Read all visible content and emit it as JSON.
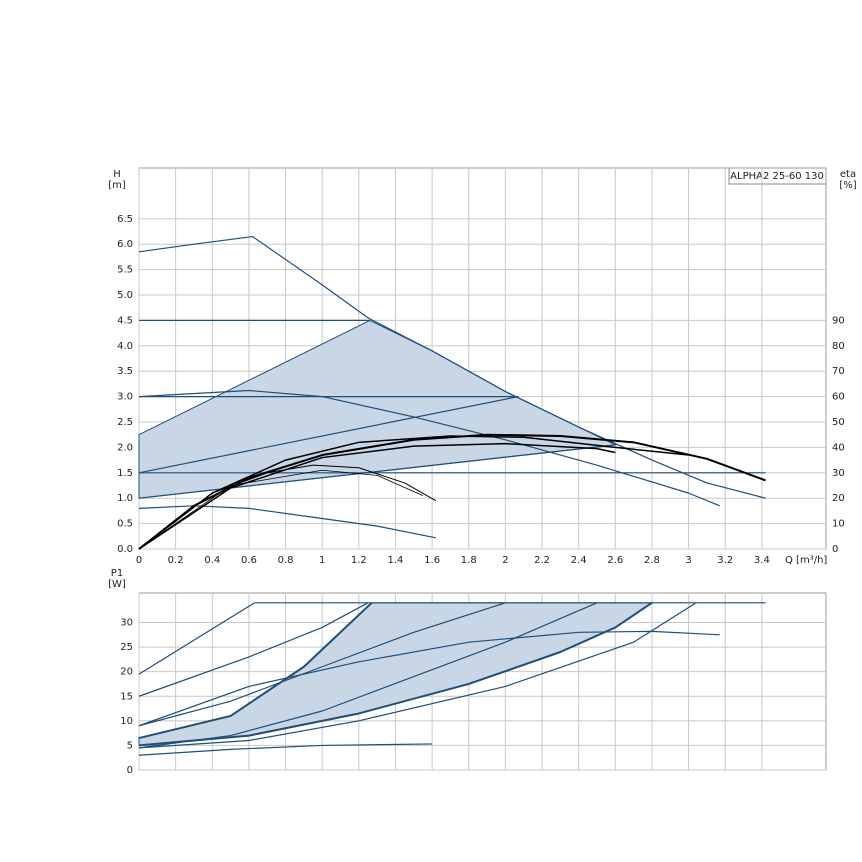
{
  "chart_data": [
    {
      "type": "line",
      "title": "ALPHA2 25-60 130",
      "ylabel": "H",
      "ylabel_unit": "[m]",
      "y2label": "eta",
      "y2label_unit": "[%]",
      "xlabel": "Q [m³/h]",
      "xlim": [
        0,
        3.75
      ],
      "ylim": [
        0,
        7.5
      ],
      "y2lim": [
        0,
        150
      ],
      "grid": true,
      "xticks": [
        0,
        0.2,
        0.4,
        0.6,
        0.8,
        1,
        1.2,
        1.4,
        1.6,
        1.8,
        2,
        2.2,
        2.4,
        2.6,
        2.8,
        3,
        3.2,
        3.4
      ],
      "yticks": [
        {
          "value": 0,
          "label": "0.0"
        },
        0.5,
        {
          "value": 1,
          "label": "1.0"
        },
        1.5,
        {
          "value": 2,
          "label": "2.0"
        },
        2.5,
        {
          "value": 3,
          "label": "3.0"
        },
        3.5,
        {
          "value": 4,
          "label": "4.0"
        },
        4.5,
        {
          "value": 5,
          "label": "5.0"
        },
        5.5,
        {
          "value": 6,
          "label": "6.0"
        },
        6.5
      ],
      "y2ticks": [
        0,
        10,
        20,
        30,
        40,
        50,
        60,
        70,
        80,
        90
      ],
      "series": [
        {
          "fill": "#c9d6e6",
          "color": "#1f4e79",
          "x": [
            0,
            1.26,
            1.6,
            2.0,
            2.4,
            2.6,
            0
          ],
          "values": [
            2.25,
            4.5,
            3.9,
            3.1,
            2.4,
            2.05,
            1.0
          ]
        },
        {
          "color": "#1f4e79",
          "x": [
            0,
            0.3,
            0.62,
            0.8,
            1.0,
            1.25,
            1.6,
            2.0,
            2.4,
            2.8,
            3.1,
            3.42
          ],
          "values": [
            5.85,
            6.0,
            6.15,
            5.7,
            5.2,
            4.55,
            3.9,
            3.1,
            2.4,
            1.75,
            1.3,
            1.0
          ]
        },
        {
          "color": "#1f4e79",
          "x": [
            0,
            1.26
          ],
          "values": [
            4.5,
            4.5
          ]
        },
        {
          "color": "#1f4e79",
          "x": [
            0,
            2.07
          ],
          "values": [
            3.0,
            3.0
          ]
        },
        {
          "color": "#1f4e79",
          "x": [
            0,
            3.42
          ],
          "values": [
            1.5,
            1.5
          ]
        },
        {
          "color": "#1f4e79",
          "x": [
            0,
            2.07
          ],
          "values": [
            1.5,
            3.0
          ]
        },
        {
          "color": "#1f4e79",
          "x": [
            0,
            2.6
          ],
          "values": [
            1.0,
            2.05
          ]
        },
        {
          "color": "#1f4e79",
          "x": [
            0,
            0.6,
            1.0,
            1.5,
            2.0,
            2.5,
            3.0,
            3.17
          ],
          "values": [
            3.0,
            3.12,
            3.0,
            2.6,
            2.15,
            1.65,
            1.1,
            0.85
          ]
        },
        {
          "color": "#1f4e79",
          "x": [
            0,
            0.3,
            0.6,
            1.0,
            1.3,
            1.62
          ],
          "values": [
            0.8,
            0.85,
            0.8,
            0.6,
            0.45,
            0.22
          ]
        },
        {
          "color": "#000000",
          "width": 2,
          "axis": "y2",
          "x": [
            0,
            0.3,
            0.6,
            1.0,
            1.5,
            1.9,
            2.3,
            2.7,
            3.1,
            3.42
          ],
          "values": [
            0,
            17,
            28,
            37,
            43,
            45,
            44.5,
            42,
            35.5,
            27
          ]
        },
        {
          "color": "#000000",
          "width": 1.5,
          "axis": "y2",
          "x": [
            0,
            0.4,
            0.8,
            1.2,
            1.7,
            2.1,
            2.6,
            3.0
          ],
          "values": [
            0,
            22,
            35,
            42,
            44.5,
            44,
            40,
            37
          ]
        },
        {
          "color": "#000000",
          "width": 1.5,
          "axis": "y2",
          "x": [
            0,
            0.5,
            1.0,
            1.5,
            2.0,
            2.5,
            2.6
          ],
          "values": [
            0,
            24,
            36,
            40.5,
            41.5,
            39.5,
            38
          ]
        },
        {
          "color": "#000000",
          "width": 1,
          "axis": "y2",
          "x": [
            0,
            0.4,
            0.7,
            0.95,
            1.2,
            1.45,
            1.62
          ],
          "values": [
            0,
            22,
            30,
            33,
            32,
            26,
            19
          ]
        },
        {
          "color": "#000000",
          "width": 0.8,
          "axis": "y2",
          "x": [
            0,
            0.5,
            1.0,
            1.3,
            1.55
          ],
          "values": [
            0,
            25,
            31,
            29,
            21
          ]
        }
      ]
    },
    {
      "type": "line",
      "ylabel": "P1",
      "ylabel_unit": "[W]",
      "xlim": [
        0,
        3.75
      ],
      "ylim": [
        0,
        36
      ],
      "grid": true,
      "xticks": [
        0,
        0.2,
        0.4,
        0.6,
        0.8,
        1,
        1.2,
        1.4,
        1.6,
        1.8,
        2,
        2.2,
        2.4,
        2.6,
        2.8,
        3,
        3.2,
        3.4
      ],
      "yticks": [
        0,
        5,
        10,
        15,
        20,
        25,
        30
      ],
      "series": [
        {
          "fill": "#c9d6e6",
          "color": "#1f4e79",
          "x": [
            0,
            0.5,
            0.9,
            1.27,
            2.8,
            2.6,
            2.3,
            1.8,
            1.2,
            0.6,
            0
          ],
          "values": [
            6.5,
            11,
            21,
            34,
            34,
            29,
            24,
            17.5,
            11.5,
            7,
            5
          ]
        },
        {
          "color": "#1f4e79",
          "x": [
            0,
            0.63
          ],
          "values": [
            19.5,
            34
          ]
        },
        {
          "color": "#1f4e79",
          "x": [
            0,
            0.6,
            1.0,
            1.25
          ],
          "values": [
            15,
            23,
            29,
            34
          ]
        },
        {
          "color": "#1f4e79",
          "x": [
            0.63,
            3.42
          ],
          "values": [
            34,
            34
          ]
        },
        {
          "color": "#1f4e79",
          "x": [
            0,
            0.5,
            1.0,
            1.5,
            2.0
          ],
          "values": [
            9,
            14,
            21,
            28,
            34
          ]
        },
        {
          "color": "#1f4e79",
          "width": 2,
          "x": [
            0,
            0.5,
            0.9,
            1.27
          ],
          "values": [
            6.5,
            11,
            21,
            34
          ]
        },
        {
          "color": "#1f4e79",
          "width": 2,
          "x": [
            0,
            0.6,
            1.2,
            1.8,
            2.3,
            2.6,
            2.8
          ],
          "values": [
            5,
            7,
            11.5,
            17.5,
            24,
            29,
            34
          ]
        },
        {
          "color": "#1f4e79",
          "x": [
            0,
            0.6,
            1.2,
            2.0,
            2.7,
            3.04
          ],
          "values": [
            4.5,
            6,
            10,
            17,
            26,
            34
          ]
        },
        {
          "color": "#1f4e79",
          "x": [
            0,
            0.6,
            1.2,
            1.8,
            2.4,
            2.8,
            3.17
          ],
          "values": [
            9,
            17,
            22,
            26,
            28,
            28.2,
            27.5
          ]
        },
        {
          "color": "#1f4e79",
          "x": [
            0,
            0.5,
            1.0,
            1.6
          ],
          "values": [
            3,
            4.2,
            5,
            5.3
          ]
        },
        {
          "color": "#1f4e79",
          "x": [
            0,
            0.5,
            1.0,
            1.5,
            2.0,
            2.5
          ],
          "values": [
            4.5,
            7,
            12,
            19,
            26,
            34
          ]
        }
      ]
    }
  ]
}
